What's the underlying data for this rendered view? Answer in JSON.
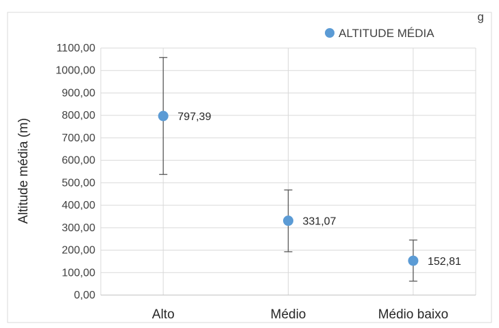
{
  "title_fragment": "g",
  "chart_data": {
    "type": "scatter",
    "title": "",
    "xlabel": "",
    "ylabel": "Altitude média (m)",
    "categories": [
      "Alto",
      "Médio",
      "Médio baixo"
    ],
    "series": [
      {
        "name": "ALTITUDE MÉDIA",
        "color": "#5b9bd5",
        "values": [
          797.39,
          331.07,
          152.81
        ],
        "labels": [
          "797,39",
          "331,07",
          "152,81"
        ],
        "error_low": [
          537,
          193,
          62
        ],
        "error_high": [
          1058,
          468,
          245
        ]
      }
    ],
    "ylim": [
      0,
      1100
    ],
    "ytick_step": 100,
    "ytick_labels": [
      "0,00",
      "100,00",
      "200,00",
      "300,00",
      "400,00",
      "500,00",
      "600,00",
      "700,00",
      "800,00",
      "900,00",
      "1000,00",
      "1100,00"
    ],
    "grid": true,
    "legend": "top-right"
  }
}
